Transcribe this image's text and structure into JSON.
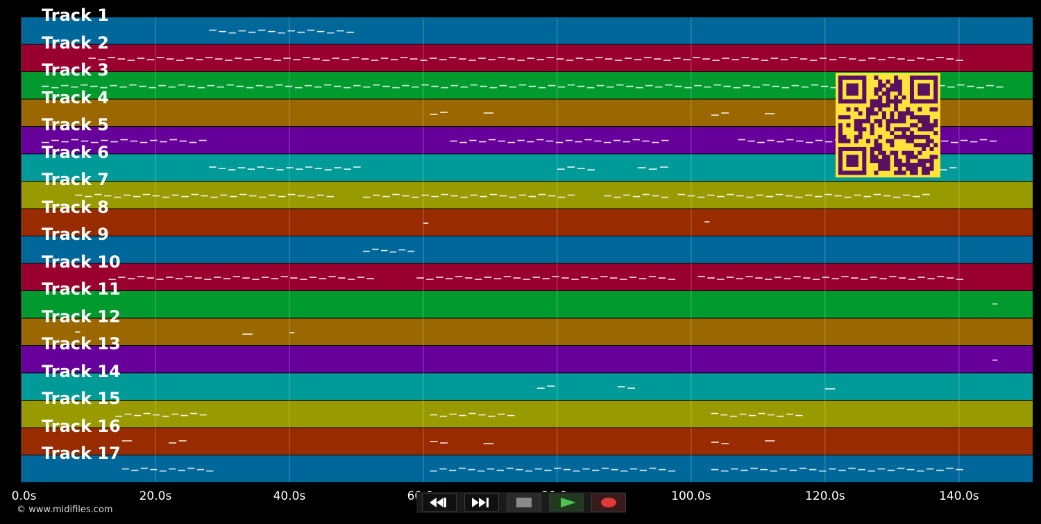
{
  "tracks": [
    {
      "label": "Track 1",
      "color": "#00679a"
    },
    {
      "label": "Track 2",
      "color": "#99002f"
    },
    {
      "label": "Track 3",
      "color": "#009a2f"
    },
    {
      "label": "Track 4",
      "color": "#9a6700"
    },
    {
      "label": "Track 5",
      "color": "#67009a"
    },
    {
      "label": "Track 6",
      "color": "#009a99"
    },
    {
      "label": "Track 7",
      "color": "#999a00"
    },
    {
      "label": "Track 8",
      "color": "#992b00"
    },
    {
      "label": "Track 9",
      "color": "#00679a"
    },
    {
      "label": "Track 10",
      "color": "#99002f"
    },
    {
      "label": "Track 11",
      "color": "#009a2f"
    },
    {
      "label": "Track 12",
      "color": "#9a6700"
    },
    {
      "label": "Track 13",
      "color": "#67009a"
    },
    {
      "label": "Track 14",
      "color": "#009a99"
    },
    {
      "label": "Track 15",
      "color": "#999a00"
    },
    {
      "label": "Track 16",
      "color": "#992b00"
    },
    {
      "label": "Track 17",
      "color": "#00679a"
    }
  ],
  "time_axis": {
    "ticks": [
      "0.0s",
      "20.0s",
      "40.0s",
      "60.0s",
      "80.0s",
      "100.0s",
      "120.0s",
      "140.0s"
    ],
    "max_seconds": 151
  },
  "notes": [
    {
      "track": 0,
      "segments": [
        [
          28,
          50
        ]
      ]
    },
    {
      "track": 1,
      "segments": [
        [
          10,
          141
        ]
      ]
    },
    {
      "track": 2,
      "segments": [
        [
          3,
          147
        ]
      ]
    },
    {
      "track": 3,
      "segments": [
        [
          61,
          64
        ],
        [
          69,
          71
        ],
        [
          103,
          106
        ],
        [
          111,
          113
        ]
      ]
    },
    {
      "track": 4,
      "segments": [
        [
          3,
          28
        ],
        [
          64,
          97
        ],
        [
          107,
          146
        ]
      ]
    },
    {
      "track": 5,
      "segments": [
        [
          28,
          51
        ],
        [
          80,
          86
        ],
        [
          92,
          97
        ],
        [
          130,
          140
        ]
      ]
    },
    {
      "track": 6,
      "segments": [
        [
          8,
          47
        ],
        [
          51,
          83
        ],
        [
          87,
          97
        ],
        [
          98,
          136
        ]
      ]
    },
    {
      "track": 7,
      "segments": [
        [
          60,
          61
        ],
        [
          102,
          103
        ]
      ]
    },
    {
      "track": 8,
      "segments": [
        [
          51,
          59
        ]
      ]
    },
    {
      "track": 9,
      "segments": [
        [
          13,
          53
        ],
        [
          59,
          98
        ],
        [
          101,
          141
        ]
      ]
    },
    {
      "track": 10,
      "segments": [
        [
          145,
          146
        ]
      ]
    },
    {
      "track": 11,
      "segments": [
        [
          8,
          9
        ],
        [
          33,
          35
        ],
        [
          40,
          41
        ]
      ]
    },
    {
      "track": 12,
      "segments": [
        [
          145,
          146
        ]
      ]
    },
    {
      "track": 13,
      "segments": [
        [
          77,
          80
        ],
        [
          89,
          92
        ],
        [
          120,
          122
        ]
      ]
    },
    {
      "track": 14,
      "segments": [
        [
          14,
          28
        ],
        [
          61,
          74
        ],
        [
          103,
          117
        ]
      ]
    },
    {
      "track": 15,
      "segments": [
        [
          15,
          17
        ],
        [
          22,
          25
        ],
        [
          61,
          64
        ],
        [
          69,
          71
        ],
        [
          103,
          106
        ],
        [
          111,
          113
        ]
      ]
    },
    {
      "track": 16,
      "segments": [
        [
          15,
          29
        ],
        [
          61,
          98
        ],
        [
          103,
          141
        ]
      ]
    }
  ],
  "copyright": "© www.midifiles.com",
  "controls": [
    {
      "name": "rewind-button",
      "icon": "rewind-icon",
      "color": "#ffffff"
    },
    {
      "name": "fast-forward-button",
      "icon": "fast-forward-icon",
      "color": "#ffffff"
    },
    {
      "name": "stop-button",
      "icon": "stop-icon",
      "color": "#8a8a8a"
    },
    {
      "name": "play-button",
      "icon": "play-icon",
      "color": "#4fc24f"
    },
    {
      "name": "record-button",
      "icon": "record-icon",
      "color": "#e03a3a"
    }
  ],
  "qr": {
    "icon": "qr-code-icon",
    "color": "#5a1060",
    "background": "#ffe23a"
  }
}
